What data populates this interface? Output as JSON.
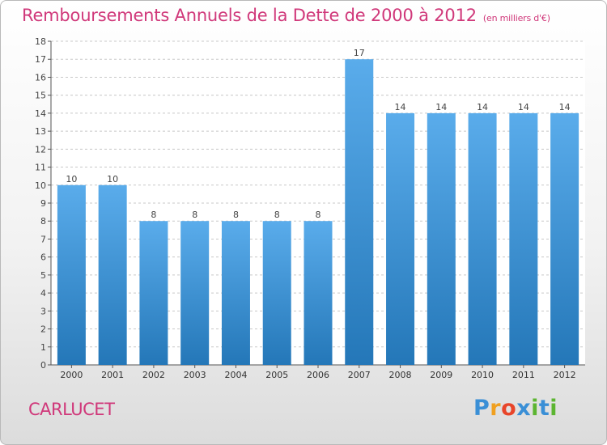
{
  "title": "Remboursements Annuels de la Dette de 2000 à 2012",
  "unit_note": "(en milliers d'€)",
  "commune": "CARLUCET",
  "brand": {
    "letters": [
      "P",
      "r",
      "o",
      "x",
      "i",
      "t",
      "i"
    ],
    "colors": [
      "#3a8fd6",
      "#f0a020",
      "#e8452a",
      "#3a8fd6",
      "#5cb531",
      "#3a8fd6",
      "#5cb531"
    ]
  },
  "colors": {
    "bar_top": "#5aaceb",
    "bar_bottom": "#2477b8",
    "title": "#d0387a",
    "grid": "#c8c8c8"
  },
  "chart_data": {
    "type": "bar",
    "title": "Remboursements Annuels de la Dette de 2000 à 2012",
    "xlabel": "",
    "ylabel": "",
    "categories": [
      "2000",
      "2001",
      "2002",
      "2003",
      "2004",
      "2005",
      "2006",
      "2007",
      "2008",
      "2009",
      "2010",
      "2011",
      "2012"
    ],
    "values": [
      10,
      10,
      8,
      8,
      8,
      8,
      8,
      17,
      14,
      14,
      14,
      14,
      14
    ],
    "ylim": [
      0,
      18
    ],
    "yticks": [
      0,
      1,
      2,
      3,
      4,
      5,
      6,
      7,
      8,
      9,
      10,
      11,
      12,
      13,
      14,
      15,
      16,
      17,
      18
    ],
    "grid": true,
    "data_labels": true
  }
}
